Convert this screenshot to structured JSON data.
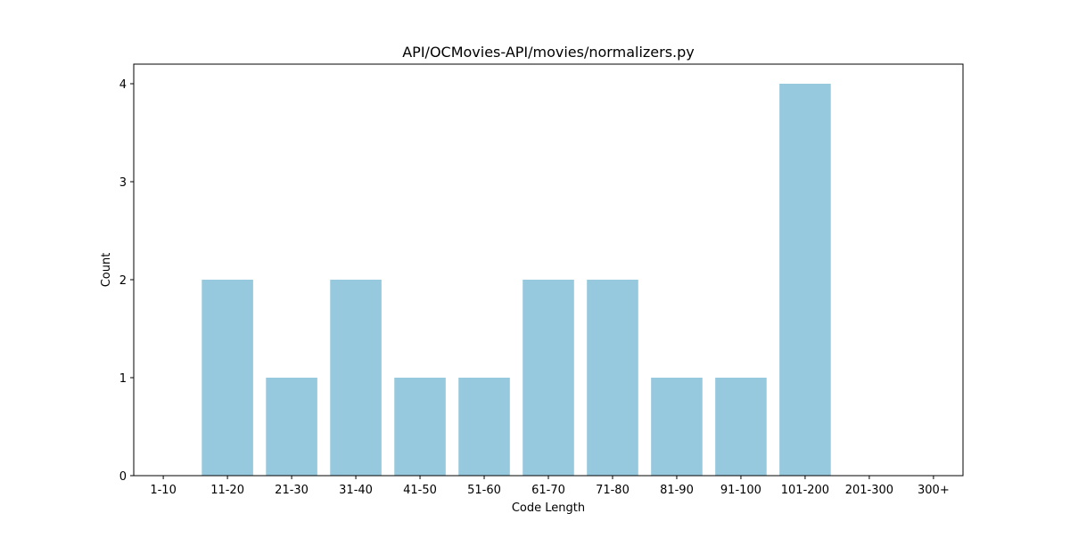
{
  "chart_data": {
    "type": "bar",
    "title": "API/OCMovies-API/movies/normalizers.py",
    "xlabel": "Code Length",
    "ylabel": "Count",
    "categories": [
      "1-10",
      "11-20",
      "21-30",
      "31-40",
      "41-50",
      "51-60",
      "61-70",
      "71-80",
      "81-90",
      "91-100",
      "101-200",
      "201-300",
      "300+"
    ],
    "values": [
      0,
      2,
      1,
      2,
      1,
      1,
      2,
      2,
      1,
      1,
      4,
      0,
      0
    ],
    "ylim": [
      0,
      4.2
    ],
    "yticks": [
      0,
      1,
      2,
      3,
      4
    ],
    "bar_color": "#96c9dd",
    "grid": false,
    "legend": "none"
  }
}
